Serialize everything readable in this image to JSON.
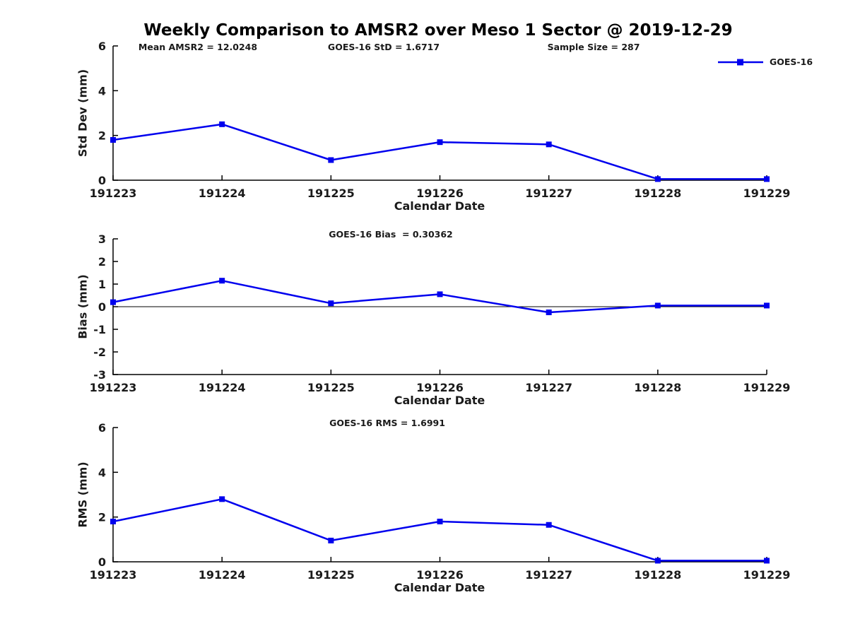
{
  "figure": {
    "title": "Weekly Comparison to AMSR2 over Meso 1 Sector @ 2019-12-29",
    "stats": {
      "mean_amsr2": "Mean AMSR2 = 12.0248",
      "goes_std": "GOES-16 StD = 1.6717",
      "sample_size": "Sample Size = 287"
    },
    "legend": {
      "label": "GOES-16",
      "color": "#0000EE"
    }
  },
  "chart_data": [
    {
      "type": "line",
      "name": "std-dev",
      "title": "",
      "ylabel": "Std Dev (mm)",
      "xlabel": "Calendar Date",
      "categories": [
        "191223",
        "191224",
        "191225",
        "191226",
        "191227",
        "191228",
        "191229"
      ],
      "series": [
        {
          "name": "GOES-16",
          "values": [
            1.8,
            2.5,
            0.9,
            1.7,
            1.6,
            0.05,
            0.05
          ]
        }
      ],
      "ylim": [
        0,
        6
      ],
      "yticks": [
        0,
        2,
        4,
        6
      ],
      "zero_line": false,
      "grid": false,
      "line_color": "#0000EE",
      "marker": "square",
      "legend_position": "top-right"
    },
    {
      "type": "line",
      "name": "bias",
      "title": "GOES-16 Bias  = 0.30362",
      "ylabel": "Bias (mm)",
      "xlabel": "Calendar Date",
      "categories": [
        "191223",
        "191224",
        "191225",
        "191226",
        "191227",
        "191228",
        "191229"
      ],
      "series": [
        {
          "name": "GOES-16",
          "values": [
            0.2,
            1.15,
            0.15,
            0.55,
            -0.25,
            0.05,
            0.05
          ]
        }
      ],
      "ylim": [
        -3,
        3
      ],
      "yticks": [
        -3,
        -2,
        -1,
        0,
        1,
        2,
        3
      ],
      "zero_line": true,
      "grid": false,
      "line_color": "#0000EE",
      "marker": "square"
    },
    {
      "type": "line",
      "name": "rms",
      "title": "GOES-16 RMS = 1.6991",
      "ylabel": "RMS (mm)",
      "xlabel": "Calendar Date",
      "categories": [
        "191223",
        "191224",
        "191225",
        "191226",
        "191227",
        "191228",
        "191229"
      ],
      "series": [
        {
          "name": "GOES-16",
          "values": [
            1.8,
            2.8,
            0.95,
            1.8,
            1.65,
            0.05,
            0.05
          ]
        }
      ],
      "ylim": [
        0,
        6
      ],
      "yticks": [
        0,
        2,
        4,
        6
      ],
      "zero_line": false,
      "grid": false,
      "line_color": "#0000EE",
      "marker": "square"
    }
  ]
}
